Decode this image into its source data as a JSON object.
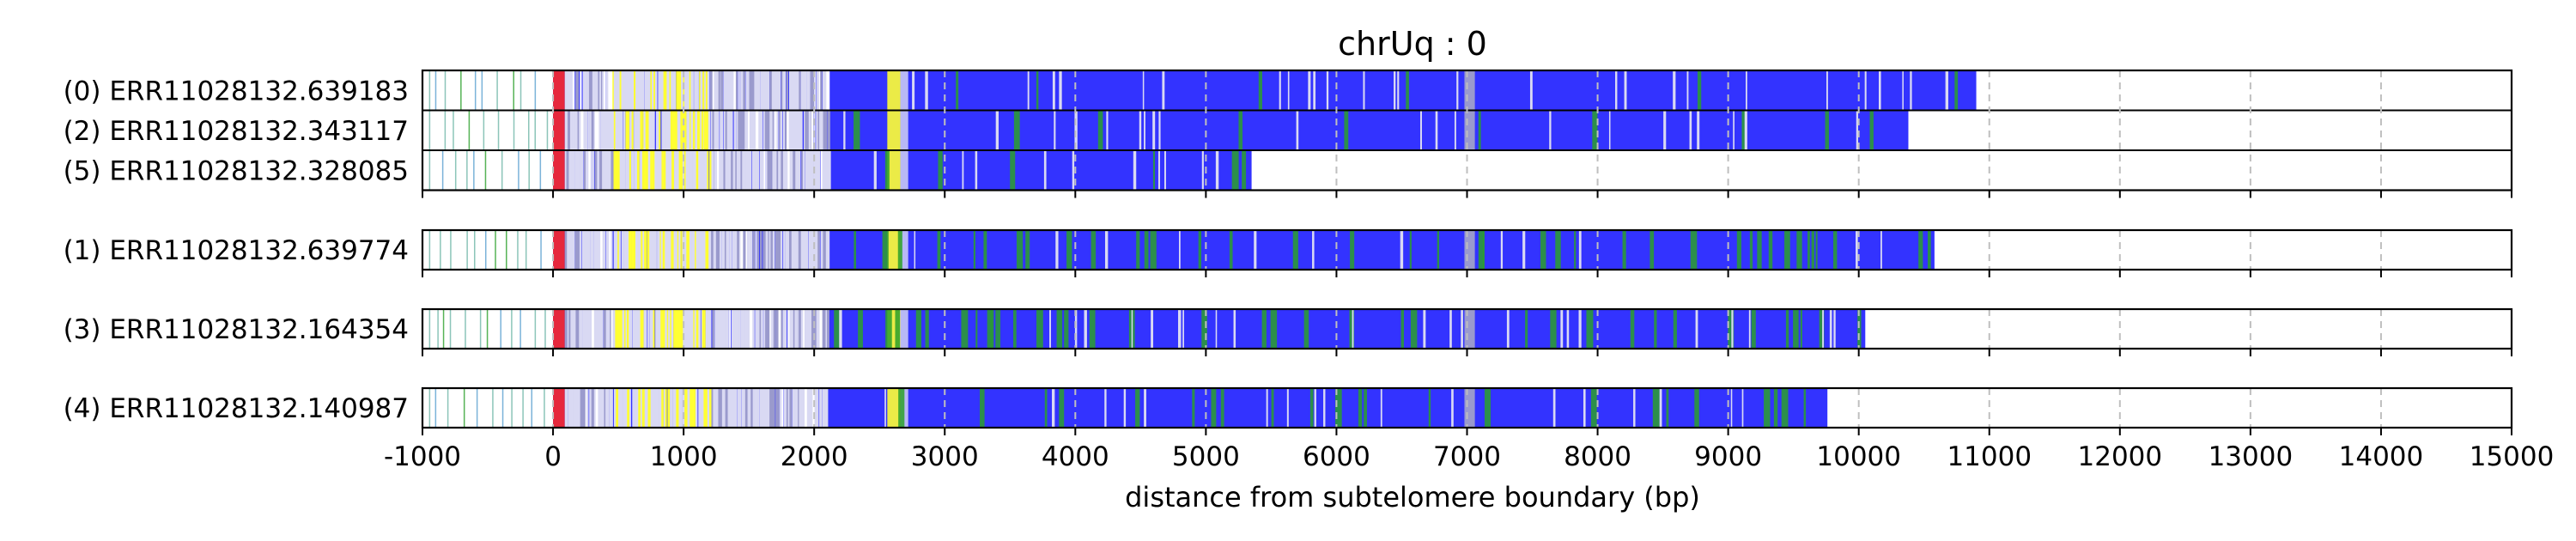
{
  "chart_data": {
    "type": "read-track",
    "title": "chrUq : 0",
    "xlabel": "distance from subtelomere boundary (bp)",
    "xlim": [
      -1000,
      15000
    ],
    "xticks": [
      -1000,
      0,
      1000,
      2000,
      3000,
      4000,
      5000,
      6000,
      7000,
      8000,
      9000,
      10000,
      11000,
      12000,
      13000,
      14000,
      15000
    ],
    "grid": "vertical dashed at x ticks",
    "colors": {
      "base": "#3333ff",
      "boundary": "#e6283c",
      "yellow": "#ffff33",
      "green": "#2ca02c",
      "light": "#d9d9f3",
      "grey": "#9a9acd",
      "teal": "#6fb7a8",
      "axis": "#000000",
      "grid": "#bfbfbf"
    },
    "groups": [
      {
        "reads": [
          {
            "label": "(0) ERR11028132.639183",
            "end": 10900,
            "green_density": 0.05
          },
          {
            "label": "(2) ERR11028132.343117",
            "end": 10380,
            "green_density": 0.06
          },
          {
            "label": "(5) ERR11028132.328085",
            "end": 5350,
            "green_density": 0.04
          }
        ]
      },
      {
        "reads": [
          {
            "label": "(1) ERR11028132.639774",
            "end": 10580,
            "green_density": 0.22
          }
        ]
      },
      {
        "reads": [
          {
            "label": "(3) ERR11028132.164354",
            "end": 10050,
            "green_density": 0.25
          }
        ]
      },
      {
        "reads": [
          {
            "label": "(4) ERR11028132.140987",
            "end": 9760,
            "green_density": 0.2
          }
        ]
      }
    ]
  }
}
